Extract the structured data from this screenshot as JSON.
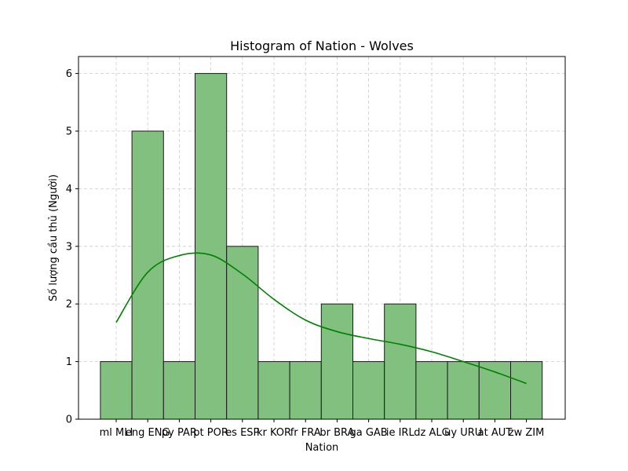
{
  "chart_data": {
    "type": "bar",
    "title": "Histogram of Nation - Wolves",
    "xlabel": "Nation",
    "ylabel": "Số lượng cầu thủ (Người)",
    "categories": [
      "ml MLI",
      "eng ENG",
      "py PAR",
      "pt POR",
      "es ESP",
      "kr KOR",
      "fr FRA",
      "br BRA",
      "ga GAB",
      "ie IRL",
      "dz ALG",
      "uy URU",
      "at AUT",
      "zw ZIM"
    ],
    "values": [
      1,
      5,
      1,
      6,
      3,
      1,
      1,
      2,
      1,
      2,
      1,
      1,
      1,
      1
    ],
    "kde": [
      1.68,
      2.55,
      2.84,
      2.85,
      2.52,
      2.08,
      1.72,
      1.52,
      1.4,
      1.3,
      1.17,
      1.0,
      0.82,
      0.62
    ],
    "ylim": [
      0,
      6
    ],
    "yticks": [
      0,
      1,
      2,
      3,
      4,
      5,
      6
    ],
    "grid": true,
    "colors": {
      "bar_fill": "#81c07f",
      "bar_edge": "#1a1a1a",
      "kde_line": "#008000",
      "grid": "#cccccc"
    }
  }
}
